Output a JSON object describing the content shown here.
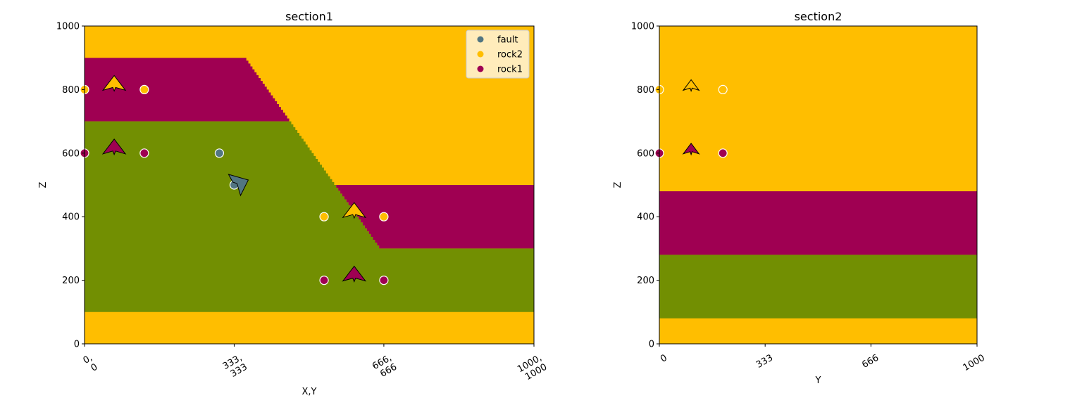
{
  "colors": {
    "rock2": "#ffbe00",
    "rock1": "#9f0052",
    "basement": "#728f02",
    "fault": "#527682"
  },
  "chart_data": [
    {
      "type": "heatmap",
      "title": "section1",
      "xlabel": "X,Y",
      "ylabel": "Z",
      "xlim": [
        0,
        1000
      ],
      "ylim": [
        0,
        1000
      ],
      "xtick_labels": [
        "0,\n0",
        "333,\n333",
        "666,\n666",
        "1000,\n1000"
      ],
      "xtick_values": [
        0,
        333,
        666,
        1000
      ],
      "ytick_values": [
        0,
        200,
        400,
        600,
        800,
        1000
      ],
      "legend": {
        "placement": "top-right",
        "entries": [
          {
            "name": "fault",
            "color": "#527682"
          },
          {
            "name": "rock2",
            "color": "#ffbe00"
          },
          {
            "name": "rock1",
            "color": "#9f0052"
          }
        ]
      },
      "layers": {
        "top_rock2_from_z": 900,
        "hanging_wall": {
          "rock1_top": 900,
          "rock1_base": 700,
          "basement_base": 100
        },
        "footwall": {
          "rock1_top": 500,
          "rock1_base": 300,
          "basement_base": 100
        },
        "fault_trace": {
          "x_top": 360,
          "z_top": 900,
          "x_bottom": 660,
          "z_bottom": 300
        }
      },
      "surface_points": [
        {
          "x": 0,
          "z": 800,
          "series": "rock2"
        },
        {
          "x": 133,
          "z": 800,
          "series": "rock2"
        },
        {
          "x": 0,
          "z": 600,
          "series": "rock1"
        },
        {
          "x": 133,
          "z": 600,
          "series": "rock1"
        },
        {
          "x": 300,
          "z": 600,
          "series": "fault"
        },
        {
          "x": 333,
          "z": 500,
          "series": "fault"
        },
        {
          "x": 533,
          "z": 400,
          "series": "rock2"
        },
        {
          "x": 666,
          "z": 400,
          "series": "rock2"
        },
        {
          "x": 533,
          "z": 200,
          "series": "rock1"
        },
        {
          "x": 666,
          "z": 200,
          "series": "rock1"
        }
      ],
      "orientations": [
        {
          "x": 66,
          "z": 800,
          "series": "rock2",
          "dip_dir": "up"
        },
        {
          "x": 66,
          "z": 600,
          "series": "rock1",
          "dip_dir": "up"
        },
        {
          "x": 600,
          "z": 400,
          "series": "rock2",
          "dip_dir": "up"
        },
        {
          "x": 600,
          "z": 200,
          "series": "rock1",
          "dip_dir": "up"
        },
        {
          "x": 333,
          "z": 500,
          "series": "fault",
          "dip_dir": "down-right"
        }
      ]
    },
    {
      "type": "heatmap",
      "title": "section2",
      "xlabel": "Y",
      "ylabel": "Z",
      "xlim": [
        0,
        1000
      ],
      "ylim": [
        0,
        1000
      ],
      "xtick_labels": [
        "0",
        "333",
        "666",
        "1000"
      ],
      "xtick_values": [
        0,
        333,
        666,
        1000
      ],
      "ytick_values": [
        0,
        200,
        400,
        600,
        800,
        1000
      ],
      "layers": {
        "bands": [
          {
            "from": 480,
            "to": 1000,
            "series": "rock2"
          },
          {
            "from": 280,
            "to": 480,
            "series": "rock1"
          },
          {
            "from": 80,
            "to": 280,
            "series": "basement"
          },
          {
            "from": 0,
            "to": 80,
            "series": "rock2"
          }
        ]
      },
      "surface_points": [
        {
          "x": 0,
          "z": 800,
          "series": "rock2"
        },
        {
          "x": 200,
          "z": 800,
          "series": "rock2"
        },
        {
          "x": 0,
          "z": 600,
          "series": "rock1"
        },
        {
          "x": 200,
          "z": 600,
          "series": "rock1"
        }
      ],
      "orientations": [
        {
          "x": 100,
          "z": 800,
          "series": "rock2",
          "dip_dir": "up"
        },
        {
          "x": 100,
          "z": 600,
          "series": "rock1",
          "dip_dir": "up"
        }
      ]
    }
  ]
}
